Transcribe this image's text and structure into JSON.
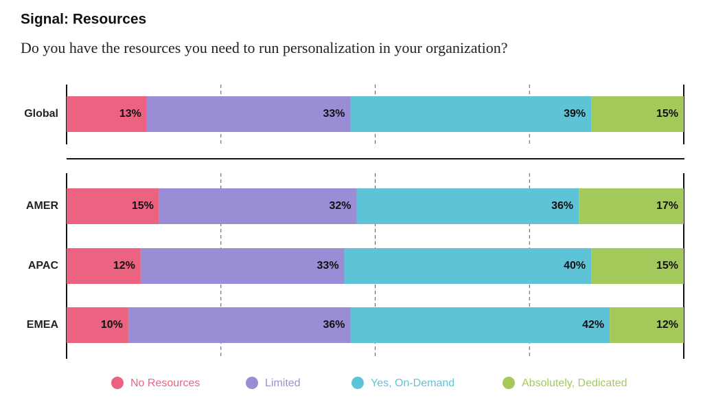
{
  "chart_data": {
    "type": "stacked-barh",
    "title": "Signal: Resources",
    "subtitle": "Do you have the resources you need to run personalization in your organization?",
    "categories": [
      "Global",
      "AMER",
      "APAC",
      "EMEA"
    ],
    "series": [
      {
        "name": "No Resources",
        "color": "#ec6281",
        "values": [
          13,
          15,
          12,
          10
        ],
        "value_labels": [
          "13%",
          "15%",
          "12%",
          "10%"
        ]
      },
      {
        "name": "Limited",
        "color": "#9b8cd6",
        "values": [
          33,
          32,
          33,
          36
        ],
        "value_labels": [
          "33%",
          "32%",
          "33%",
          "36%"
        ]
      },
      {
        "name": "Yes, On-Demand",
        "color": "#5fc3d7",
        "values": [
          39,
          36,
          40,
          42
        ],
        "value_labels": [
          "39%",
          "36%",
          "40%",
          "42%"
        ]
      },
      {
        "name": "Absolutely, Dedicated",
        "color": "#a3c95a",
        "values": [
          15,
          17,
          15,
          12
        ],
        "value_labels": [
          "15%",
          "17%",
          "15%",
          "12%"
        ]
      }
    ],
    "xlim": [
      0,
      100
    ],
    "xticks": [
      0,
      25,
      50,
      75,
      100
    ],
    "grid": true
  }
}
